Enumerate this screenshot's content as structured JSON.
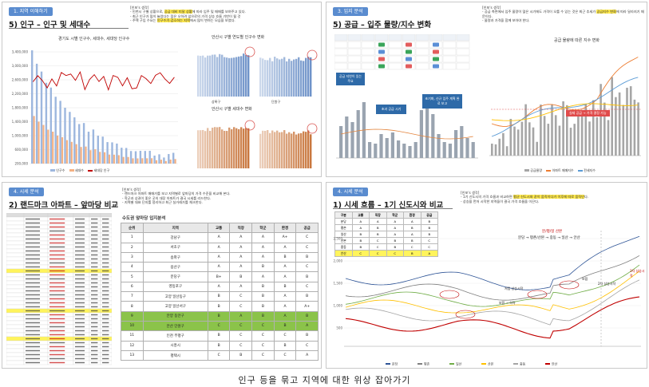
{
  "caption": "인구 등을 묶고 지역에 대한 위상 잡아가기",
  "s1": {
    "tag": "1. 지역 이해하기",
    "title": "5) 인구 – 인구 및 세대수",
    "memo_head": "[인포's 생각]",
    "memo": [
      "- 인천시 구별 상황으로, ",
      "공급 대비 미달 상황",
      "에 따라 입주 및 매매를 보여주고 있다.",
      "- 최근 인구가 많이 늘었다는 점은 오히려 앞으로의 가격 상승 흐름 기반이 될 것",
      "- 주택 구입 수요는 ",
      "인구수가 감소하는 지역",
      "에서 많이 변하는 모습을 보였다."
    ],
    "c1": "경기도 시별 인구수, 세대수, 세대당 인구수",
    "c2": "안산시 구별 연도별 인구수 변화",
    "c3": "안산시 구별 세대수 변화",
    "y1": [
      "3,400,000",
      "3,000,000",
      "2,600,000",
      "2,200,000",
      "1,800,000",
      "1,400,000",
      "1,000,000",
      "600,000",
      "200,000"
    ],
    "legend": [
      "인구수",
      "세대수",
      "세대당 인구"
    ],
    "b2": [
      "상록구",
      "단원구"
    ]
  },
  "s2": {
    "tag": "3. 입지 분석",
    "title": "5) 공급 – 입주 물량/지수 변화",
    "memo_head": "[인포's 생각]",
    "memo": [
      "- 공급 측면에서 입주 물량이 많은 시기에도 가격이 오를 수 있는 것은 최근 추세가 ",
      "공급지수 변화",
      "에 따라 달라지기 때문이다.",
      "- 물량과 가격을 함께 보아야 한다."
    ],
    "c2": "공급 물량에 따른 지수 변화",
    "chips": [
      "비교",
      "서울",
      "경기",
      "인천"
    ],
    "callouts": [
      "공급 지연이 있는 주요",
      "초과 공급 시기",
      "초기화, 신규 입주 계획 완료 보고"
    ],
    "redtag": "실제 공급 → 가격 결정 가능",
    "legend": [
      "공급물량",
      "아파트 매매지수",
      "전세지수"
    ]
  },
  "s3": {
    "tag": "4. 시세 분석",
    "title": "2) 랜드마크 아파트 – 앞마당 비교",
    "memo_head": "[인포's 생각]",
    "memo": [
      "- 랜드마크 아파트 매매가를 보고 지역별로 앞마당의 가격 수준을 비교해 본다.",
      "- 학군과 상권이 좋은 곳의 대장 아파트가 결국 시세를 리드한다.",
      "- 지역별 대표 단지를 정리하고 최근 실거래가를 체크한다."
    ],
    "gtitle": "수도권 앞마당 입지분석",
    "gh": [
      "순위",
      "지역",
      "교통",
      "직장",
      "학군",
      "환경",
      "공급"
    ],
    "grows": [
      [
        "1",
        "강남구",
        "A",
        "A",
        "A",
        "A+",
        "C"
      ],
      [
        "2",
        "서초구",
        "A",
        "A",
        "A",
        "A",
        "C"
      ],
      [
        "3",
        "송파구",
        "A",
        "A",
        "A",
        "B",
        "B"
      ],
      [
        "4",
        "용산구",
        "A",
        "A",
        "B",
        "A",
        "C"
      ],
      [
        "5",
        "분당구",
        "B+",
        "B",
        "A",
        "A",
        "B"
      ],
      [
        "6",
        "영등포구",
        "A",
        "A",
        "B",
        "B",
        "C"
      ],
      [
        "7",
        "고양 일산동구",
        "B",
        "C",
        "B",
        "A",
        "B"
      ],
      [
        "8",
        "고양 일산서구",
        "B",
        "C",
        "B",
        "A",
        "A+"
      ],
      [
        "9",
        "안양 동안구",
        "B",
        "A",
        "B",
        "A",
        "B"
      ],
      [
        "10",
        "안산 단원구",
        "C",
        "C",
        "C",
        "B",
        "A"
      ],
      [
        "11",
        "인천 부평구",
        "B",
        "C",
        "C",
        "C",
        "B"
      ],
      [
        "12",
        "시흥시",
        "B",
        "C",
        "C",
        "B",
        "C"
      ],
      [
        "13",
        "평택시",
        "C",
        "B",
        "C",
        "C",
        "A"
      ]
    ]
  },
  "s4": {
    "tag": "4. 시세 분석",
    "title": "1) 시세 흐름 – 1기 신도시와 비교",
    "memo_head": "[인포's 생각]",
    "memo": [
      "- 1기 신도시의 가격 흐름과 비교하면 ",
      "평균 신도시와 같이 움직이다가 이후에 따로 움직인",
      "다.",
      "- 상승을 먼저 시작한 지역들이 결국 가격 흐름을 이끈다."
    ],
    "mh": [
      "구분",
      "교통",
      "직장",
      "학군",
      "환경",
      "공급"
    ],
    "mrows": [
      [
        "분당",
        "A",
        "A",
        "A",
        "A",
        "B"
      ],
      [
        "평촌",
        "A",
        "B",
        "A",
        "B",
        "B"
      ],
      [
        "일산",
        "B",
        "B",
        "A",
        "A",
        "B"
      ],
      [
        "산본",
        "B",
        "C",
        "B",
        "B",
        "C"
      ],
      [
        "중동",
        "B",
        "C",
        "B",
        "C",
        "C"
      ],
      [
        "안산",
        "C",
        "C",
        "C",
        "B",
        "A"
      ]
    ],
    "labels": [
      "분/평/일 산본",
      "분당 → 평촌/산본 → 중동 → 일산 → 안산",
      "1차 상승시작",
      "2차 상승시작",
      "보합",
      "저점 상승시작",
      "보합 → 하락"
    ],
    "ylabels": [
      "2,500",
      "2,000",
      "1,500",
      "1,000",
      "500"
    ],
    "series": [
      "분당",
      "평촌",
      "일산",
      "산본",
      "중동",
      "안산"
    ]
  }
}
